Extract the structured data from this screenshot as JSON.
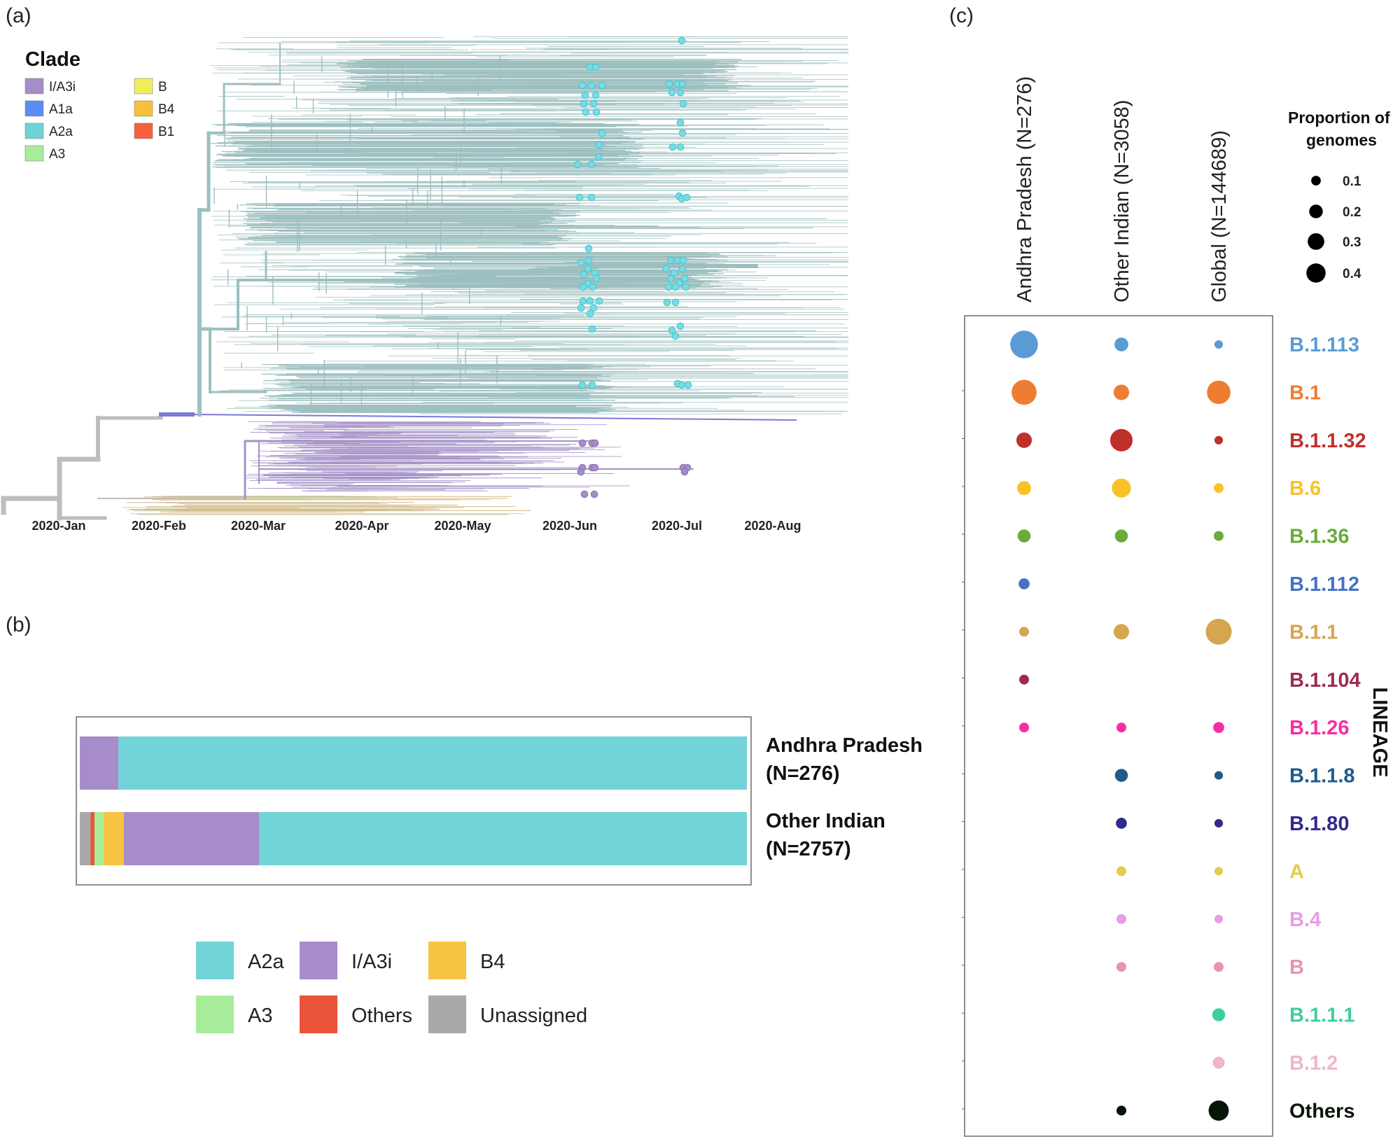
{
  "panels": {
    "a": "(a)",
    "b": "(b)",
    "c": "(c)"
  },
  "colors": {
    "tree_a2a": "#9dbfbf",
    "tree_tip": "#73dde6",
    "tree_i_a3i": "#a592c8",
    "tree_root": "#bdbdbd",
    "tree_a1a": "#7b7ad8",
    "tree_b4": "#d8b98a",
    "tree_a3": "#b8dcb0"
  },
  "tree_legend": {
    "title": "Clade",
    "items": [
      {
        "label": "I/A3i",
        "color": "#a68cc8"
      },
      {
        "label": "A1a",
        "color": "#5b8cf4"
      },
      {
        "label": "A2a",
        "color": "#6fd3d6"
      },
      {
        "label": "A3",
        "color": "#a8ec9a"
      },
      {
        "label": "B",
        "color": "#f1ec5a"
      },
      {
        "label": "B4",
        "color": "#f6bf3d"
      },
      {
        "label": "B1",
        "color": "#f2603c"
      }
    ]
  },
  "timeline": {
    "months": [
      "2020-Jan",
      "2020-Feb",
      "2020-Mar",
      "2020-Apr",
      "2020-May",
      "2020-Jun",
      "2020-Jul",
      "2020-Aug"
    ]
  },
  "chart_data": [
    {
      "id": "b",
      "type": "bar",
      "orientation": "horizontal",
      "stacked": true,
      "normalized": true,
      "title": "",
      "categories": [
        "Andhra Pradesh\n(N=276)",
        "Other Indian\n(N=2757)"
      ],
      "category_lines": [
        [
          "Andhra Pradesh",
          "(N=276)"
        ],
        [
          "Other Indian",
          "(N=2757)"
        ]
      ],
      "series": [
        {
          "name": "Unassigned",
          "color": "#a9a9a9",
          "values": [
            0.0,
            0.016
          ]
        },
        {
          "name": "Others",
          "color": "#e8533a",
          "values": [
            0.0,
            0.006
          ]
        },
        {
          "name": "A3",
          "color": "#a8ec9a",
          "values": [
            0.0,
            0.014
          ]
        },
        {
          "name": "B4",
          "color": "#f6c343",
          "values": [
            0.0,
            0.03
          ]
        },
        {
          "name": "I/A3i",
          "color": "#a68cc8",
          "values": [
            0.058,
            0.203
          ]
        },
        {
          "name": "A2a",
          "color": "#72d3d9",
          "values": [
            0.942,
            0.731
          ]
        }
      ],
      "legend_order": [
        "A2a",
        "I/A3i",
        "B4",
        "A3",
        "Others",
        "Unassigned"
      ],
      "xlim": [
        0,
        1
      ]
    },
    {
      "id": "c",
      "type": "scatter",
      "subtype": "dot-matrix",
      "title": "",
      "columns": [
        "Andhra Pradesh (N=276)",
        "Other Indian (N=3058)",
        "Global (N=144689)"
      ],
      "ylabel": "LINEAGE",
      "size_legend": {
        "title_lines": [
          "Proportion of",
          "genomes"
        ],
        "values": [
          0.1,
          0.2,
          0.3,
          0.4
        ],
        "labels": [
          "0.1",
          "0.2",
          "0.3",
          "0.4"
        ]
      },
      "lineages": [
        {
          "name": "B.1.113",
          "color": "#5b9bd5",
          "values": [
            0.32,
            0.08,
            0.03
          ]
        },
        {
          "name": "B.1",
          "color": "#ed7d31",
          "values": [
            0.26,
            0.1,
            0.23
          ]
        },
        {
          "name": "B.1.1.32",
          "color": "#c0302b",
          "values": [
            0.1,
            0.21,
            0.03
          ]
        },
        {
          "name": "B.6",
          "color": "#f8c227",
          "values": [
            0.08,
            0.15,
            0.04
          ]
        },
        {
          "name": "B.1.36",
          "color": "#6aab3b",
          "values": [
            0.07,
            0.07,
            0.04
          ]
        },
        {
          "name": "B.1.112",
          "color": "#4472c4",
          "values": [
            0.05,
            null,
            null
          ]
        },
        {
          "name": "B.1.1",
          "color": "#d4a650",
          "values": [
            0.04,
            0.1,
            0.28
          ]
        },
        {
          "name": "B.1.104",
          "color": "#9b2c50",
          "values": [
            0.04,
            null,
            null
          ]
        },
        {
          "name": "B.1.26",
          "color": "#f72da5",
          "values": [
            0.04,
            0.04,
            0.05
          ]
        },
        {
          "name": "B.1.1.8",
          "color": "#205a8c",
          "values": [
            null,
            0.07,
            0.03
          ]
        },
        {
          "name": "B.1.80",
          "color": "#312a8c",
          "values": [
            null,
            0.05,
            0.03
          ]
        },
        {
          "name": "A",
          "color": "#e3cd4e",
          "values": [
            null,
            0.04,
            0.03
          ]
        },
        {
          "name": "B.4",
          "color": "#eb9ae8",
          "values": [
            null,
            0.04,
            0.03
          ]
        },
        {
          "name": "B",
          "color": "#e693b4",
          "values": [
            null,
            0.04,
            0.04
          ]
        },
        {
          "name": "B.1.1.1",
          "color": "#3fcf9c",
          "values": [
            null,
            null,
            0.07
          ]
        },
        {
          "name": "B.1.2",
          "color": "#f0b6c6",
          "values": [
            null,
            null,
            0.06
          ]
        },
        {
          "name": "Others",
          "color": "#071407",
          "values": [
            null,
            0.04,
            0.17
          ]
        }
      ]
    }
  ]
}
